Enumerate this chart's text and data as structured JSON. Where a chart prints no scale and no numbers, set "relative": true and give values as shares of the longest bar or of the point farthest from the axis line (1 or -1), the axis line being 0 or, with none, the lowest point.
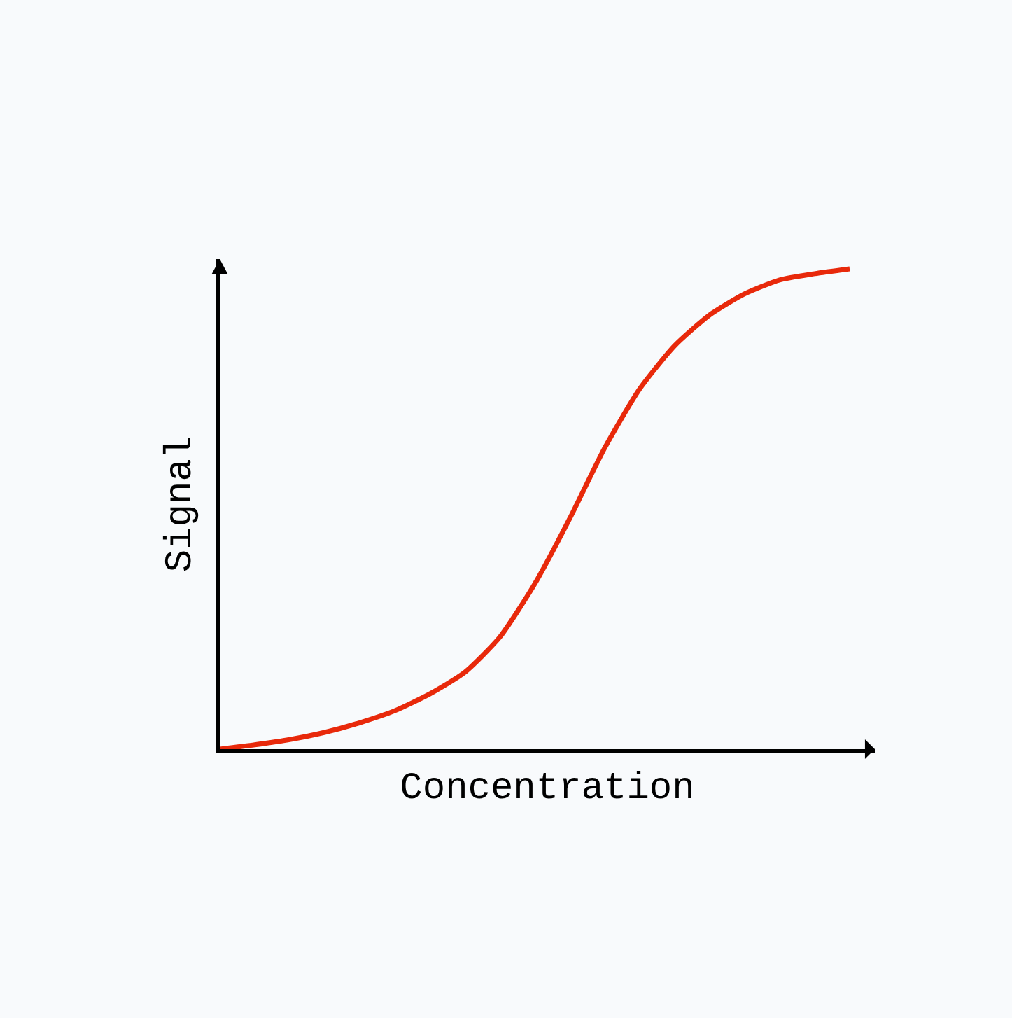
{
  "chart_data": {
    "type": "line",
    "relative": true,
    "xlabel": "Concentration",
    "ylabel": "Signal",
    "categories": [
      null,
      null,
      null,
      null,
      null,
      null,
      null,
      null,
      null,
      null,
      null,
      null,
      null,
      null,
      null,
      null,
      null,
      null,
      null
    ],
    "series": [
      {
        "color": "#e8290b",
        "values": [
          0,
          0.009,
          0.02,
          0.035,
          0.055,
          0.08,
          0.115,
          0.16,
          0.233,
          0.344,
          0.48,
          0.627,
          0.75,
          0.84,
          0.904,
          0.948,
          0.977,
          0.99,
          1
        ]
      }
    ],
    "grid": false,
    "marker": "none",
    "line_style": "solid"
  }
}
